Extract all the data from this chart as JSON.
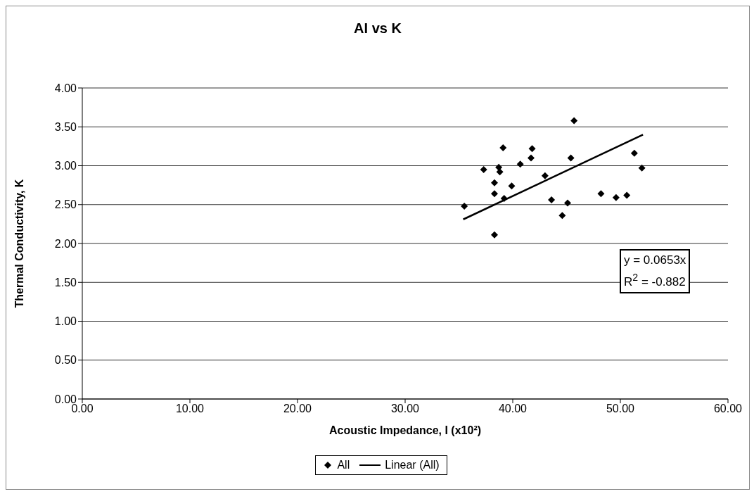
{
  "chart_data": {
    "type": "scatter",
    "title": "AI vs K",
    "xlabel": "Acoustic Impedance, I (x10²)",
    "ylabel": "Thermal Conductivity, K",
    "annotations": [
      "y = 0.0653x",
      "R$^{2}$ = -0.882"
    ],
    "series": [
      {
        "name": "All",
        "color": "#000000",
        "marker": "diamond",
        "x": [
          45.7,
          39.1,
          41.8,
          41.7,
          45.4,
          51.3,
          52.0,
          37.3,
          38.7,
          38.8,
          40.7,
          43.0,
          38.3,
          39.9,
          38.3,
          39.2,
          35.5,
          43.6,
          45.1,
          44.6,
          48.2,
          49.6,
          50.6,
          38.3
        ],
        "values": [
          3.58,
          3.23,
          3.22,
          3.1,
          3.1,
          3.16,
          2.97,
          2.95,
          2.98,
          2.92,
          3.02,
          2.87,
          2.78,
          2.74,
          2.64,
          2.58,
          2.48,
          2.56,
          2.52,
          2.36,
          2.64,
          2.59,
          2.62,
          2.11
        ]
      },
      {
        "name": "Linear (All)",
        "type": "line",
        "color": "#000000",
        "marker": "none",
        "line_style": "solid",
        "x": [
          35.4,
          52.1
        ],
        "values": [
          2.31,
          3.4
        ]
      }
    ],
    "xlim": [
      0,
      60
    ],
    "xticks": [
      {
        "value": 0,
        "label": "0.00"
      },
      {
        "value": 10,
        "label": "10.00"
      },
      {
        "value": 20,
        "label": "20.00"
      },
      {
        "value": 30,
        "label": "30.00"
      },
      {
        "value": 40,
        "label": "40.00"
      },
      {
        "value": 50,
        "label": "50.00"
      },
      {
        "value": 60,
        "label": "60.00"
      }
    ],
    "ylim": [
      0,
      4
    ],
    "yticks": [
      {
        "value": 0,
        "label": "0.00"
      },
      {
        "value": 0.5,
        "label": "0.50"
      },
      {
        "value": 1,
        "label": "1.00"
      },
      {
        "value": 1.5,
        "label": "1.50"
      },
      {
        "value": 2,
        "label": "2.00"
      },
      {
        "value": 2.5,
        "label": "2.50"
      },
      {
        "value": 3,
        "label": "3.00"
      },
      {
        "value": 3.5,
        "label": "3.50"
      },
      {
        "value": 4,
        "label": "4.00"
      }
    ],
    "grid": "y",
    "legend": "bottom"
  }
}
